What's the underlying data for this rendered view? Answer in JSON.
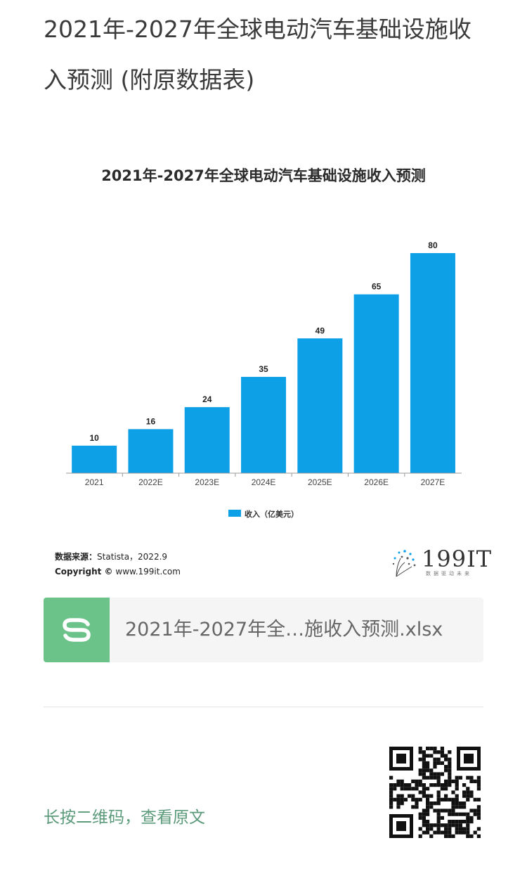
{
  "page": {
    "title": "2021年-2027年全球电动汽车基础设施收入预测 (附原数据表)"
  },
  "chart_data": {
    "type": "bar",
    "title": "2021年-2027年全球电动汽车基础设施收入预测",
    "categories": [
      "2021",
      "2022E",
      "2023E",
      "2024E",
      "2025E",
      "2026E",
      "2027E"
    ],
    "series": [
      {
        "name": "收入（亿美元）",
        "values": [
          10,
          16,
          24,
          35,
          49,
          65,
          80
        ],
        "color": "#0ea0e6"
      }
    ],
    "ylim": [
      0,
      80
    ],
    "grid": false,
    "legend_position": "bottom-center"
  },
  "source": {
    "label": "数据来源：",
    "text": "Statista，2022.9",
    "copyright_label": "Copyright ©",
    "copyright_text": "www.199it.com"
  },
  "brand": {
    "name": "199IT",
    "tagline": "数据驱动未来"
  },
  "attachment": {
    "icon": "spreadsheet-icon",
    "file_name": "2021年-2027年全…施收入预测.xlsx",
    "icon_color": "#6cc38a"
  },
  "footer": {
    "qr_hint": "长按二维码，查看原文"
  }
}
